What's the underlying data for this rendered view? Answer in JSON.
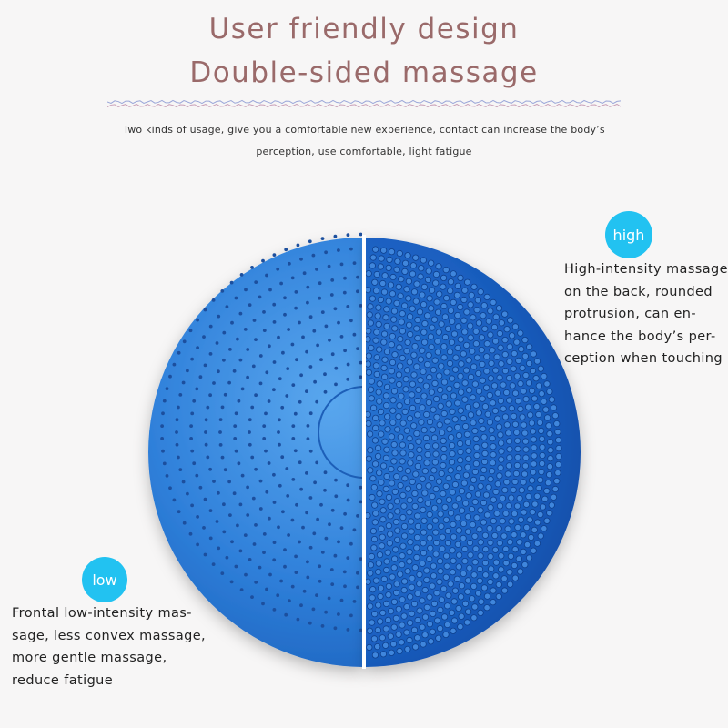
{
  "header": {
    "title_line1": "User friendly design",
    "title_line2": "Double-sided massage",
    "subtitle_line1": "Two kinds of usage, give you a comfortable new experience, contact can increase the body’s",
    "subtitle_line2": "perception, use comfortable, light fatigue"
  },
  "high": {
    "badge": "high",
    "lines": [
      "High-intensity massage",
      "on the back, rounded",
      "protrusion, can en-",
      "hance the body’s per-",
      "ception when touching"
    ]
  },
  "low": {
    "badge": "low",
    "lines": [
      "Frontal low-intensity mas-",
      "sage, less convex massage,",
      "more gentle massage,",
      "reduce fatigue"
    ]
  },
  "colors": {
    "title": "#9a6a6a",
    "badge": "#22c2f1",
    "cushion_light": "#3f8fe2",
    "cushion_dark": "#1557b8"
  }
}
